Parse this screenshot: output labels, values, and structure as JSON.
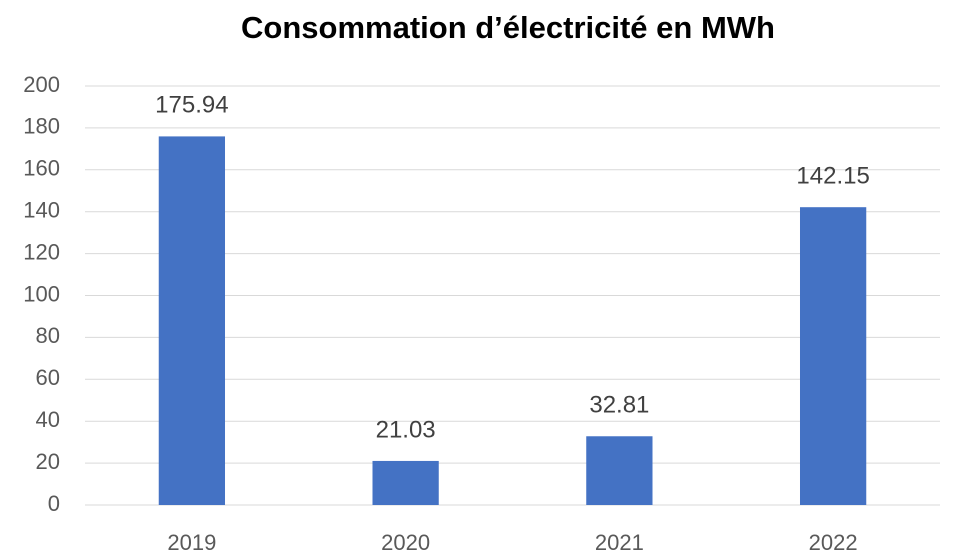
{
  "chart_data": {
    "type": "bar",
    "title": "Consommation d’électricité en MWh",
    "categories": [
      "2019",
      "2020",
      "2021",
      "2022"
    ],
    "values": [
      175.94,
      21.03,
      32.81,
      142.15
    ],
    "color": "#4472c4",
    "ylim": [
      0,
      200
    ],
    "yticks": [
      0,
      20,
      40,
      60,
      80,
      100,
      120,
      140,
      160,
      180,
      200
    ],
    "grid": true
  }
}
